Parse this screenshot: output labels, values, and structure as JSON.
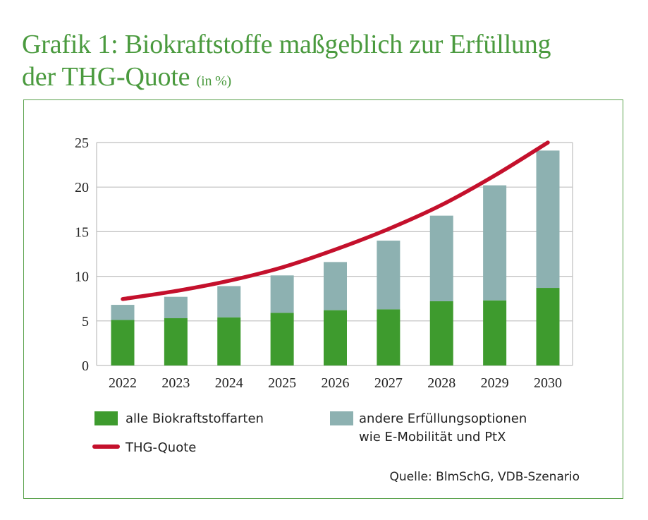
{
  "title": {
    "line1": "Grafik 1: Biokraftstoffe maßgeblich zur Erfüllung",
    "line2": "der THG-Quote",
    "unit": "(in %)"
  },
  "source": "Quelle: BlmSchG, VDB-Szenario",
  "colors": {
    "title": "#4a9a3e",
    "frame": "#5aa24c",
    "bio": "#3e9b2e",
    "other": "#8db1b1",
    "line": "#c4102c",
    "grid": "#bfbfbf"
  },
  "chart_data": {
    "type": "bar",
    "stacked": true,
    "categories": [
      "2022",
      "2023",
      "2024",
      "2025",
      "2026",
      "2027",
      "2028",
      "2029",
      "2030"
    ],
    "series": [
      {
        "name": "alle Biokraftstoffarten",
        "values": [
          5.1,
          5.3,
          5.4,
          5.9,
          6.2,
          6.3,
          7.2,
          7.3,
          8.7
        ],
        "color": "#3e9b2e"
      },
      {
        "name": "andere Erfüllungsoptionen wie E-Mobilität und PtX",
        "values": [
          1.7,
          2.4,
          3.5,
          4.2,
          5.4,
          7.7,
          9.6,
          12.9,
          15.4
        ],
        "color": "#8db1b1"
      }
    ],
    "line_series": {
      "name": "THG-Quote",
      "values": [
        7.45,
        8.35,
        9.5,
        11.0,
        13.0,
        15.3,
        18.0,
        21.3,
        25.0
      ],
      "color": "#c4102c"
    },
    "ylim": [
      0,
      25
    ],
    "yticks": [
      "0",
      "5",
      "10",
      "15",
      "20",
      "25"
    ],
    "grid": true,
    "legend": {
      "bio_label": "alle Biokraftstoffarten",
      "other_label_line1": "andere Erfüllungsoptionen",
      "other_label_line2": "wie E-Mobilität und PtX",
      "line_label": "THG-Quote",
      "position": "bottom"
    }
  }
}
